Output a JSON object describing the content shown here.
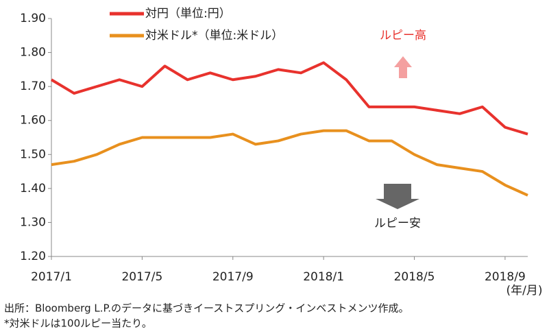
{
  "chart_data": {
    "type": "line",
    "categories": [
      "2017/1",
      null,
      null,
      null,
      "2017/5",
      null,
      null,
      null,
      "2017/9",
      null,
      null,
      null,
      "2018/1",
      null,
      null,
      null,
      "2018/5",
      null,
      null,
      null,
      "2018/9",
      null
    ],
    "series": [
      {
        "name": "対円（単位:円）",
        "color": "#e8322d",
        "values": [
          1.72,
          1.68,
          1.7,
          1.72,
          1.7,
          1.76,
          1.72,
          1.74,
          1.72,
          1.73,
          1.75,
          1.74,
          1.77,
          1.72,
          1.64,
          1.64,
          1.64,
          1.63,
          1.62,
          1.64,
          1.58,
          1.56
        ]
      },
      {
        "name": "対米ドル*（単位:米ドル）",
        "color": "#e8901e",
        "values": [
          1.47,
          1.48,
          1.5,
          1.53,
          1.55,
          1.55,
          1.55,
          1.55,
          1.56,
          1.53,
          1.54,
          1.56,
          1.57,
          1.57,
          1.54,
          1.54,
          1.5,
          1.47,
          1.46,
          1.45,
          1.41,
          1.38
        ]
      }
    ],
    "ylim": [
      1.2,
      1.9
    ],
    "yticks": [
      {
        "value": 1.2,
        "label": "1.20"
      },
      {
        "value": 1.3,
        "label": "1.30"
      },
      {
        "value": 1.4,
        "label": "1.40"
      },
      {
        "value": 1.5,
        "label": "1.50"
      },
      {
        "value": 1.6,
        "label": "1.60"
      },
      {
        "value": 1.7,
        "label": "1.70"
      },
      {
        "value": 1.8,
        "label": "1.80"
      },
      {
        "value": 1.9,
        "label": "1.90"
      }
    ],
    "annotations": [
      "ルピー高",
      "ルピー安"
    ],
    "x_unit": "(年/月)",
    "notes": [
      "出所：Bloomberg L.P.のデータに基づきイーストスプリング・インベストメンツ作成。",
      "*対米ドルは100ルピー当たり。"
    ]
  }
}
